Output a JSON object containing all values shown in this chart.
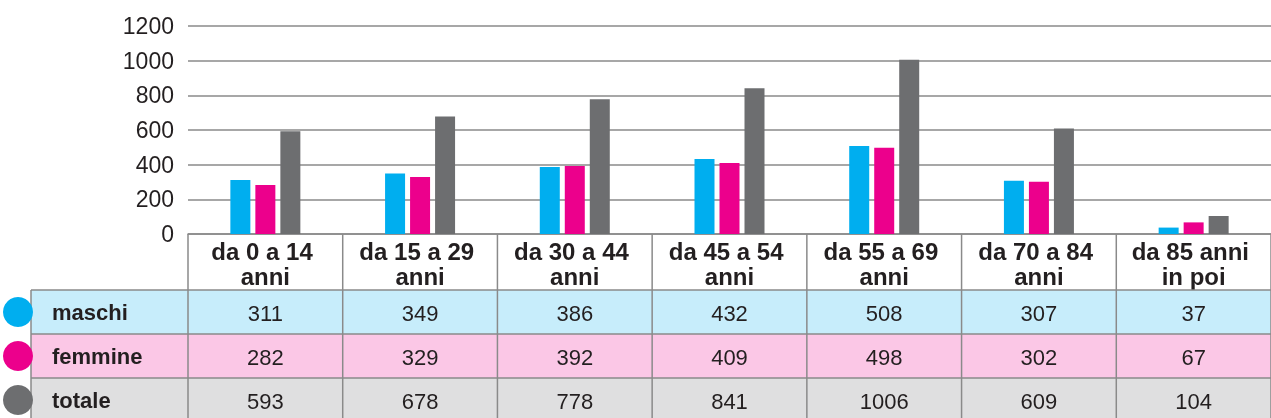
{
  "chart_data": {
    "type": "bar",
    "categories": [
      "da 0 a 14 anni",
      "da 15 a 29 anni",
      "da 30 a 44 anni",
      "da 45 a 54 anni",
      "da 55 a 69 anni",
      "da 70 a 84 anni",
      "da 85 anni in poi"
    ],
    "series": [
      {
        "name": "maschi",
        "color": "#00aeef",
        "values": [
          311,
          349,
          386,
          432,
          508,
          307,
          37
        ]
      },
      {
        "name": "femmine",
        "color": "#ec008c",
        "values": [
          282,
          329,
          392,
          409,
          498,
          302,
          67
        ]
      },
      {
        "name": "totale",
        "color": "#6d6e70",
        "values": [
          593,
          678,
          778,
          841,
          1006,
          609,
          104
        ]
      }
    ],
    "ylim": [
      0,
      1200
    ],
    "yticks": [
      0,
      200,
      400,
      600,
      800,
      1000,
      1200
    ],
    "grid": "y",
    "legend": "bottom left",
    "data_labels": true
  }
}
